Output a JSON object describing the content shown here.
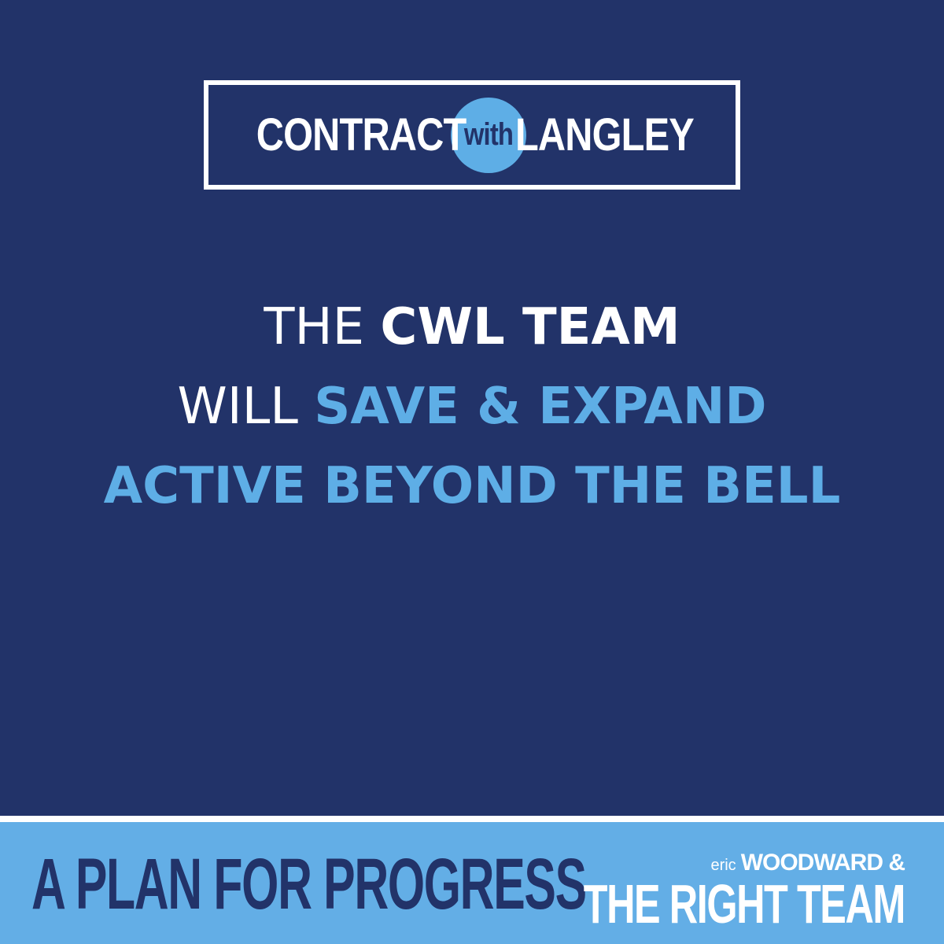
{
  "colors": {
    "background": "#223369",
    "accent": "#5eaee6",
    "footer": "#63aee6",
    "text": "#ffffff"
  },
  "logo": {
    "left_word": "CONTRACT",
    "circle_word": "with",
    "right_word": "LANGLEY"
  },
  "headline": {
    "line1_normal": "THE ",
    "line1_bold": "CWL TEAM",
    "line2_normal": "WILL ",
    "line2_bold": "SAVE & EXPAND",
    "line3_bold": "ACTIVE BEYOND THE BELL"
  },
  "footer": {
    "tagline": "A PLAN FOR PROGRESS",
    "brand_prefix": "eric",
    "brand_name": "WOODWARD &",
    "brand_team": "THE RIGHT TEAM"
  }
}
